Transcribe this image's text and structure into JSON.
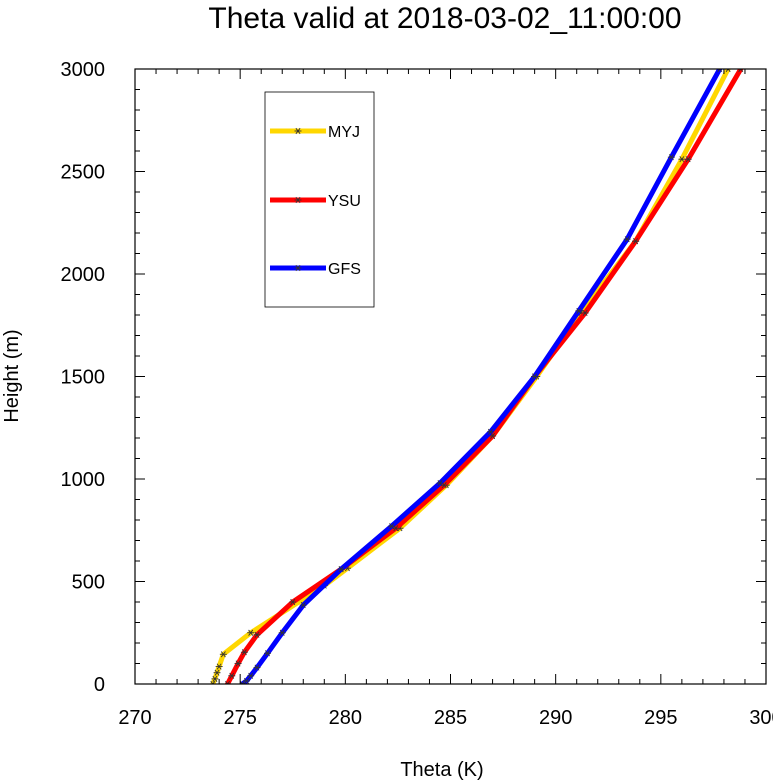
{
  "chart_data": {
    "type": "line",
    "title": "Theta valid at 2018-03-02_11:00:00",
    "xlabel": "Theta (K)",
    "ylabel": "Height (m)",
    "xlim": [
      270,
      300
    ],
    "ylim": [
      0,
      3000
    ],
    "xticks": [
      "270",
      "275",
      "280",
      "285",
      "290",
      "295",
      "300"
    ],
    "yticks": [
      "0",
      "500",
      "1000",
      "1500",
      "2000",
      "2500",
      "3000"
    ],
    "grid": false,
    "legend_position": "top-left",
    "series": [
      {
        "name": "MYJ",
        "color": "#ffd700",
        "points": [
          [
            273.7,
            0
          ],
          [
            273.8,
            25
          ],
          [
            273.9,
            55
          ],
          [
            274.0,
            85
          ],
          [
            274.2,
            145
          ],
          [
            275.5,
            250
          ],
          [
            279.0,
            480
          ],
          [
            280.1,
            565
          ],
          [
            282.6,
            760
          ],
          [
            284.8,
            970
          ],
          [
            287.0,
            1210
          ],
          [
            289.1,
            1500
          ],
          [
            291.2,
            1810
          ],
          [
            293.8,
            2160
          ],
          [
            296.0,
            2560
          ],
          [
            298.2,
            3000
          ]
        ]
      },
      {
        "name": "YSU",
        "color": "#ff0000",
        "points": [
          [
            274.4,
            0
          ],
          [
            274.6,
            40
          ],
          [
            274.9,
            100
          ],
          [
            275.2,
            155
          ],
          [
            275.8,
            240
          ],
          [
            277.5,
            400
          ],
          [
            279.8,
            560
          ],
          [
            282.4,
            760
          ],
          [
            284.7,
            970
          ],
          [
            287.0,
            1210
          ],
          [
            289.0,
            1500
          ],
          [
            291.4,
            1810
          ],
          [
            293.8,
            2160
          ],
          [
            296.3,
            2560
          ],
          [
            298.8,
            3000
          ]
        ]
      },
      {
        "name": "GFS",
        "color": "#0000ff",
        "points": [
          [
            275.1,
            0
          ],
          [
            275.3,
            15
          ],
          [
            275.5,
            40
          ],
          [
            275.8,
            80
          ],
          [
            276.3,
            150
          ],
          [
            277.0,
            250
          ],
          [
            278.0,
            385
          ],
          [
            279.8,
            560
          ],
          [
            282.2,
            770
          ],
          [
            284.5,
            980
          ],
          [
            286.9,
            1230
          ],
          [
            289.0,
            1500
          ],
          [
            291.1,
            1820
          ],
          [
            293.4,
            2170
          ],
          [
            295.5,
            2570
          ],
          [
            297.8,
            3000
          ]
        ]
      }
    ]
  }
}
